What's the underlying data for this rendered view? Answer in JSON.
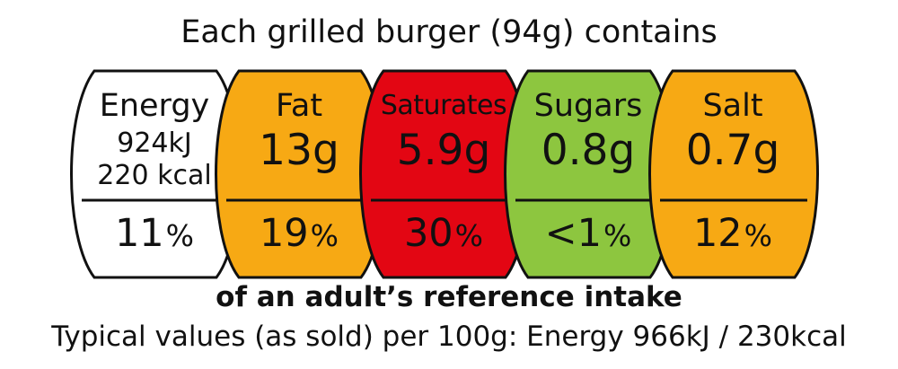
{
  "header": {
    "title": "Each grilled burger (94g) contains"
  },
  "nutrients": [
    {
      "name": "Energy",
      "amount": "",
      "amount_kj": "924kJ",
      "amount_kcal": "220 kcal",
      "percent": "11",
      "percent_symbol": "%",
      "color": "#ffffff"
    },
    {
      "name": "Fat",
      "amount": "13g",
      "percent": "19",
      "percent_symbol": "%",
      "color": "#f7a914"
    },
    {
      "name": "Saturates",
      "amount": "5.9g",
      "percent": "30",
      "percent_symbol": "%",
      "color": "#e30613"
    },
    {
      "name": "Sugars",
      "amount": "0.8g",
      "percent": "<1",
      "percent_symbol": "%",
      "color": "#8dc63f"
    },
    {
      "name": "Salt",
      "amount": "0.7g",
      "percent": "12",
      "percent_symbol": "%",
      "color": "#f7a914"
    }
  ],
  "footer": {
    "reference_text": "of an adult’s reference intake",
    "typical_values": "Typical values (as sold) per 100g: Energy 966kJ / 230kcal"
  }
}
